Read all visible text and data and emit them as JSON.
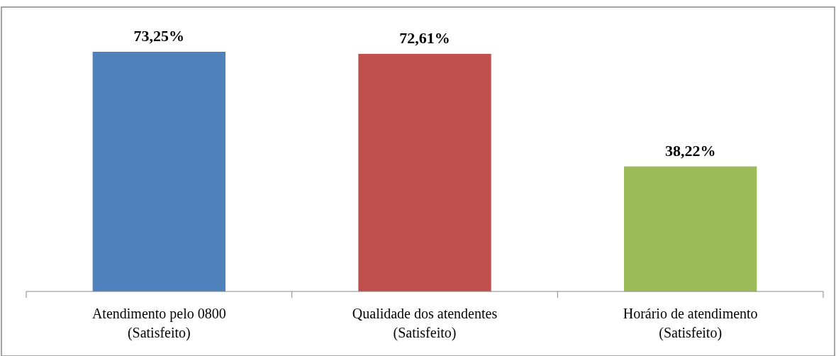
{
  "chart_data": {
    "type": "bar",
    "categories": [
      "Atendimento pelo 0800\n(Satisfeito)",
      "Qualidade dos atendentes\n(Satisfeito)",
      "Horário de atendimento\n(Satisfeito)"
    ],
    "values": [
      73.25,
      72.61,
      38.22
    ],
    "colors": [
      "#4f81bd",
      "#c0504d",
      "#9bbb59"
    ],
    "value_labels": [
      "73,25%",
      "72,61%",
      "38,22%"
    ]
  }
}
